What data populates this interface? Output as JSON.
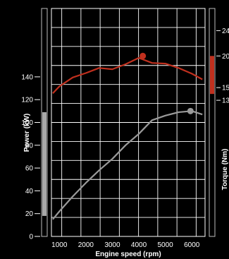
{
  "chart_data": {
    "type": "line",
    "title": "",
    "xlabel": "Engine speed (rpm)",
    "ylabel_left": "Power (kW)",
    "ylabel_right": "Torque (Nm)",
    "x_ticks": [
      1000,
      2000,
      3000,
      4000,
      5000,
      6000
    ],
    "xlim": [
      700,
      6500
    ],
    "y_left_ticks": [
      0,
      20,
      40,
      60,
      80,
      100,
      120,
      140
    ],
    "y_left_lim": [
      0,
      200
    ],
    "y_right_ticks": [
      240,
      200,
      150,
      130
    ],
    "y_right_tick_labels": [
      "24",
      "20",
      "15",
      "13"
    ],
    "y_right_lim": [
      -85,
      275
    ],
    "grid": true,
    "left_range_band": [
      18,
      109
    ],
    "right_range_band": [
      140,
      200
    ],
    "series": [
      {
        "axis": "right",
        "color": "#c0301e",
        "x": [
          750,
          1000,
          1500,
          2000,
          2500,
          3000,
          3500,
          4000,
          4500,
          5000,
          5500,
          6000,
          6400
        ],
        "y": [
          141,
          152,
          166,
          173,
          181,
          179,
          187,
          197,
          189,
          188,
          181,
          172,
          163
        ],
        "peak": {
          "x": 4150,
          "y": 200
        }
      },
      {
        "axis": "left",
        "color": "#9a9a9a",
        "x": [
          750,
          1000,
          1500,
          2000,
          2500,
          3000,
          3500,
          4000,
          4500,
          5000,
          5500,
          6000,
          6400
        ],
        "y": [
          15,
          22,
          35,
          47,
          58,
          68,
          80,
          90,
          102,
          106,
          109,
          110,
          107
        ],
        "peak": {
          "x": 5950,
          "y": 110
        }
      }
    ]
  }
}
